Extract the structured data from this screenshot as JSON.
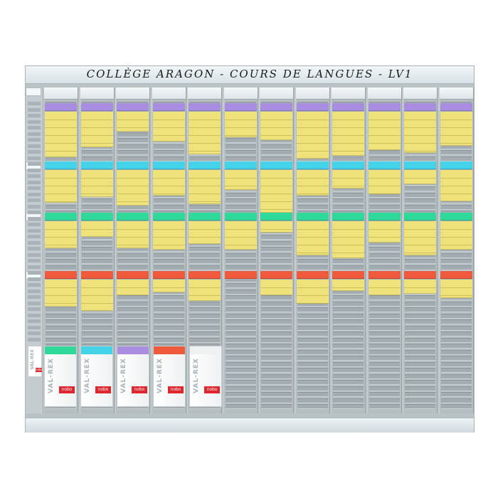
{
  "board": {
    "title": "COLLÈGE ARAGON - COURS DE LANGUES - LV1"
  },
  "colors": {
    "row_purple": "#a88de0",
    "row_cyan": "#45d3ea",
    "row_green": "#2fd99a",
    "row_red": "#ef5a3c",
    "card_yellow": "#efe27a",
    "slot_gray": "#a3adb1",
    "board_gray": "#b9c2c4",
    "logo_red": "#e0262d"
  },
  "boxes": [
    {
      "brand": "VAL-REX",
      "logo": "nobo",
      "tab_color": "#2fd99a"
    },
    {
      "brand": "VAL-REX",
      "logo": "nobo",
      "tab_color": "#45d3ea"
    },
    {
      "brand": "VAL-REX",
      "logo": "nobo",
      "tab_color": "#a88de0"
    },
    {
      "brand": "VAL-REX",
      "logo": "nobo",
      "tab_color": "#ef5a3c"
    },
    {
      "brand": "VAL-REX",
      "logo": "nobo",
      "tab_color": "#eef1f2"
    }
  ],
  "mini_box": {
    "brand": "VAL-REX",
    "logo": "nobo"
  }
}
